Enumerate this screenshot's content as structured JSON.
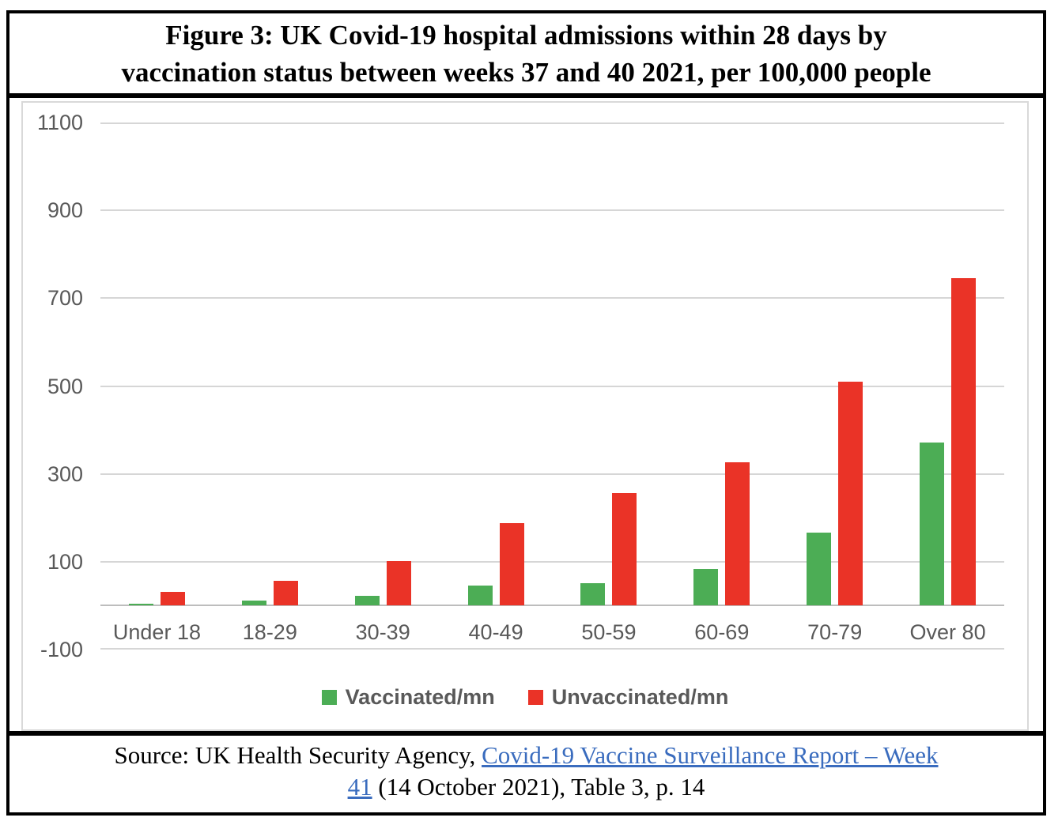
{
  "title": {
    "line1": "Figure 3: UK Covid-19 hospital admissions within 28 days by",
    "line2": "vaccination status between weeks 37 and 40 2021, per 100,000 people"
  },
  "source": {
    "prefix": "Source: UK Health Security Agency, ",
    "link_line1": "Covid-19 Vaccine Surveillance Report – Week",
    "link_line2": "41",
    "suffix": " (14 October 2021), Table 3, p. 14"
  },
  "chart_data": {
    "type": "bar",
    "title": "UK Covid-19 hospital admissions within 28 days by vaccination status between weeks 37 and 40 2021, per 100,000 people",
    "categories": [
      "Under 18",
      "18-29",
      "30-39",
      "40-49",
      "50-59",
      "60-69",
      "70-79",
      "Over 80"
    ],
    "series": [
      {
        "name": "Vaccinated/mn",
        "color": "#4CAD55",
        "values": [
          4,
          11,
          23,
          46,
          52,
          83,
          167,
          372
        ]
      },
      {
        "name": "Unvaccinated/mn",
        "color": "#EA3327",
        "values": [
          32,
          56,
          101,
          188,
          256,
          327,
          510,
          745
        ]
      }
    ],
    "xlabel": "",
    "ylabel": "",
    "ylim": [
      -100,
      1100
    ],
    "y_ticks": [
      1100,
      900,
      700,
      500,
      300,
      100,
      -100
    ],
    "grid": true,
    "legend_position": "bottom"
  },
  "colors": {
    "green": "#4CAD55",
    "red": "#EA3327",
    "link_blue": "#3A6CBE",
    "axis_text": "#595959",
    "gridline": "#D6D6D6",
    "axis_line": "#BDBDBD",
    "chart_border": "#D9D9D9",
    "frame_border": "#000000"
  }
}
